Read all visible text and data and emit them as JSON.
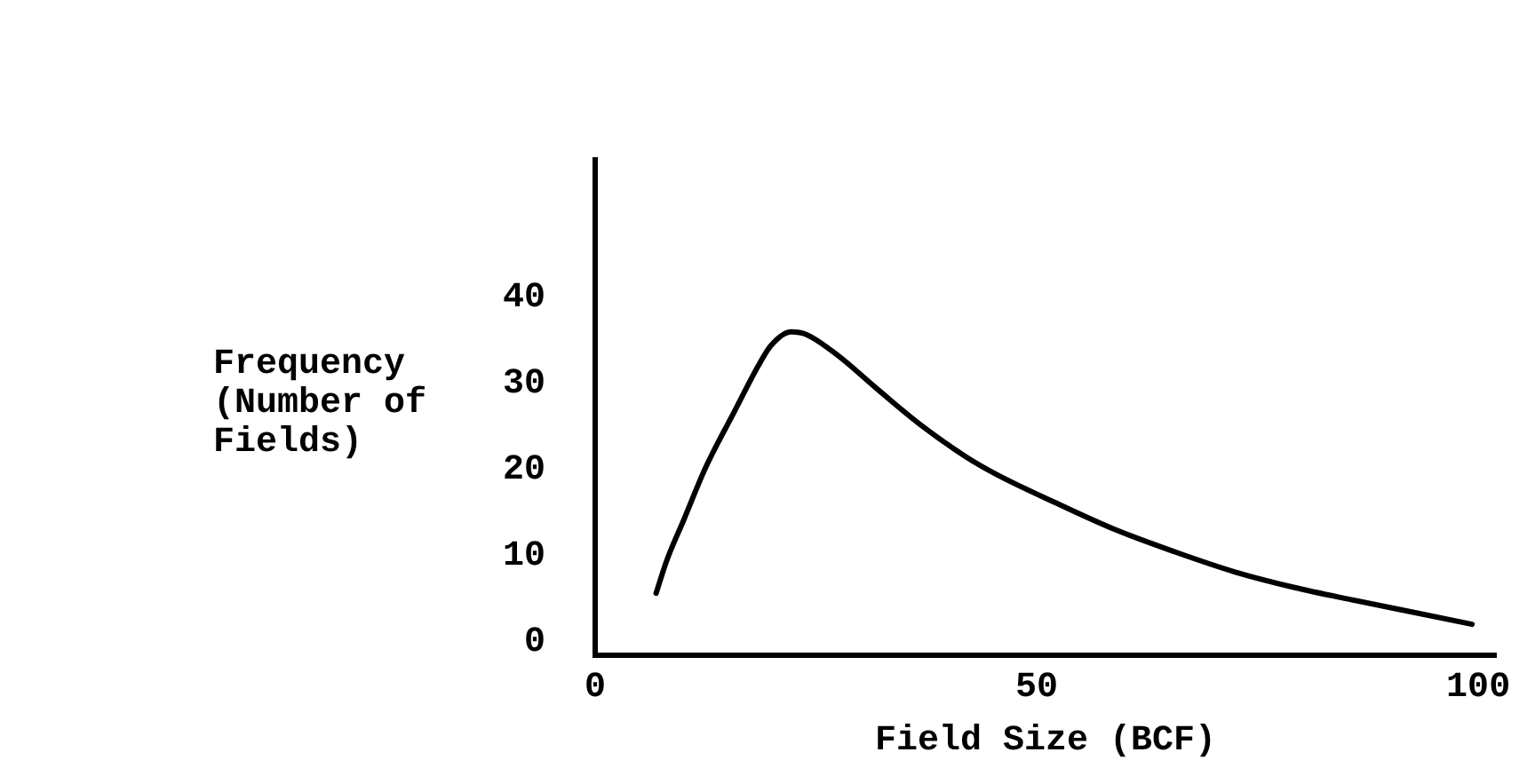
{
  "chart_data": {
    "type": "line",
    "xlabel": "Field Size (BCF)",
    "ylabel": "Frequency (Number of Fields)",
    "series": [
      {
        "color": "#000000",
        "x": [
          6.9,
          8.1,
          10.1,
          12.5,
          15.8,
          18.5,
          19.9,
          22.2,
          23.9,
          27.3,
          32,
          36.7,
          42.1,
          45.5,
          52.2,
          58.9,
          65.7,
          72.4,
          79.1,
          85.9,
          92.6,
          99.3
        ],
        "values": [
          5.6,
          9.4,
          14.3,
          20.2,
          26.8,
          32.1,
          34.4,
          36,
          35.7,
          33.4,
          29.3,
          25.3,
          21.4,
          19.4,
          16.1,
          13,
          10.4,
          8.1,
          6.3,
          4.8,
          3.4,
          2
        ]
      }
    ],
    "xlim": [
      0,
      102
    ],
    "xticks": [
      0,
      50,
      100
    ],
    "ylim": [
      -1.6,
      56
    ],
    "yticks": [
      0,
      10,
      20,
      30,
      40
    ],
    "grid": false,
    "legend": false,
    "marker": "none",
    "line_style": "solid"
  }
}
